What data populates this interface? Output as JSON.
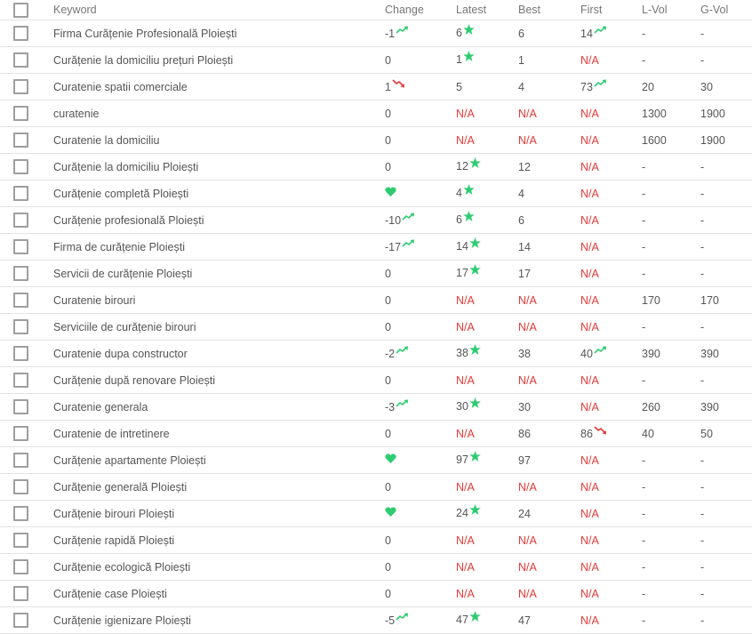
{
  "colors": {
    "green": "#2ecc71",
    "red": "#e53935",
    "text": "#555555",
    "header": "#777777",
    "border": "#e3e3e3"
  },
  "header": {
    "keyword": "Keyword",
    "change": "Change",
    "latest": "Latest",
    "best": "Best",
    "first": "First",
    "lvol": "L-Vol",
    "gvol": "G-Vol"
  },
  "rows": [
    {
      "keyword": "Firma Curățenie Profesională Ploiești",
      "change": "-1",
      "change_icon": "trend-up",
      "latest": "6",
      "latest_icon": "star",
      "best": "6",
      "first": "14",
      "first_icon": "trend-up",
      "lvol": "-",
      "gvol": "-"
    },
    {
      "keyword": "Curățenie la domiciliu prețuri Ploiești",
      "change": "0",
      "change_icon": "",
      "latest": "1",
      "latest_icon": "star",
      "best": "1",
      "first": "N/A",
      "first_icon": "",
      "lvol": "-",
      "gvol": "-"
    },
    {
      "keyword": "Curatenie spatii comerciale",
      "change": "1",
      "change_icon": "trend-down",
      "latest": "5",
      "latest_icon": "",
      "best": "4",
      "first": "73",
      "first_icon": "trend-up",
      "lvol": "20",
      "gvol": "30"
    },
    {
      "keyword": "curatenie",
      "change": "0",
      "change_icon": "",
      "latest": "N/A",
      "latest_icon": "",
      "best": "N/A",
      "first": "N/A",
      "first_icon": "",
      "lvol": "1300",
      "gvol": "1900"
    },
    {
      "keyword": "Curatenie la domiciliu",
      "change": "0",
      "change_icon": "",
      "latest": "N/A",
      "latest_icon": "",
      "best": "N/A",
      "first": "N/A",
      "first_icon": "",
      "lvol": "1600",
      "gvol": "1900"
    },
    {
      "keyword": "Curățenie la domiciliu Ploiești",
      "change": "0",
      "change_icon": "",
      "latest": "12",
      "latest_icon": "star",
      "best": "12",
      "first": "N/A",
      "first_icon": "",
      "lvol": "-",
      "gvol": "-"
    },
    {
      "keyword": "Curățenie completă Ploiești",
      "change": "",
      "change_icon": "heart",
      "latest": "4",
      "latest_icon": "star",
      "best": "4",
      "first": "N/A",
      "first_icon": "",
      "lvol": "-",
      "gvol": "-"
    },
    {
      "keyword": "Curățenie profesională Ploiești",
      "change": "-10",
      "change_icon": "trend-up",
      "latest": "6",
      "latest_icon": "star",
      "best": "6",
      "first": "N/A",
      "first_icon": "",
      "lvol": "-",
      "gvol": "-"
    },
    {
      "keyword": "Firma de curățenie Ploiești",
      "change": "-17",
      "change_icon": "trend-up",
      "latest": "14",
      "latest_icon": "star",
      "best": "14",
      "first": "N/A",
      "first_icon": "",
      "lvol": "-",
      "gvol": "-"
    },
    {
      "keyword": "Servicii de curățenie Ploiești",
      "change": "0",
      "change_icon": "",
      "latest": "17",
      "latest_icon": "star",
      "best": "17",
      "first": "N/A",
      "first_icon": "",
      "lvol": "-",
      "gvol": "-"
    },
    {
      "keyword": "Curatenie birouri",
      "change": "0",
      "change_icon": "",
      "latest": "N/A",
      "latest_icon": "",
      "best": "N/A",
      "first": "N/A",
      "first_icon": "",
      "lvol": "170",
      "gvol": "170"
    },
    {
      "keyword": "Serviciile de curățenie birouri",
      "change": "0",
      "change_icon": "",
      "latest": "N/A",
      "latest_icon": "",
      "best": "N/A",
      "first": "N/A",
      "first_icon": "",
      "lvol": "-",
      "gvol": "-"
    },
    {
      "keyword": "Curatenie dupa constructor",
      "change": "-2",
      "change_icon": "trend-up",
      "latest": "38",
      "latest_icon": "star",
      "best": "38",
      "first": "40",
      "first_icon": "trend-up",
      "lvol": "390",
      "gvol": "390"
    },
    {
      "keyword": "Curățenie după renovare Ploiești",
      "change": "0",
      "change_icon": "",
      "latest": "N/A",
      "latest_icon": "",
      "best": "N/A",
      "first": "N/A",
      "first_icon": "",
      "lvol": "-",
      "gvol": "-"
    },
    {
      "keyword": "Curatenie generala",
      "change": "-3",
      "change_icon": "trend-up",
      "latest": "30",
      "latest_icon": "star",
      "best": "30",
      "first": "N/A",
      "first_icon": "",
      "lvol": "260",
      "gvol": "390"
    },
    {
      "keyword": "Curatenie de intretinere",
      "change": "0",
      "change_icon": "",
      "latest": "N/A",
      "latest_icon": "",
      "best": "86",
      "first": "86",
      "first_icon": "trend-down",
      "lvol": "40",
      "gvol": "50"
    },
    {
      "keyword": "Curățenie apartamente Ploiești",
      "change": "",
      "change_icon": "heart",
      "latest": "97",
      "latest_icon": "star",
      "best": "97",
      "first": "N/A",
      "first_icon": "",
      "lvol": "-",
      "gvol": "-"
    },
    {
      "keyword": "Curățenie generală Ploiești",
      "change": "0",
      "change_icon": "",
      "latest": "N/A",
      "latest_icon": "",
      "best": "N/A",
      "first": "N/A",
      "first_icon": "",
      "lvol": "-",
      "gvol": "-"
    },
    {
      "keyword": "Curățenie birouri Ploiești",
      "change": "",
      "change_icon": "heart",
      "latest": "24",
      "latest_icon": "star",
      "best": "24",
      "first": "N/A",
      "first_icon": "",
      "lvol": "-",
      "gvol": "-"
    },
    {
      "keyword": "Curățenie rapidă Ploiești",
      "change": "0",
      "change_icon": "",
      "latest": "N/A",
      "latest_icon": "",
      "best": "N/A",
      "first": "N/A",
      "first_icon": "",
      "lvol": "-",
      "gvol": "-"
    },
    {
      "keyword": "Curățenie ecologică Ploiești",
      "change": "0",
      "change_icon": "",
      "latest": "N/A",
      "latest_icon": "",
      "best": "N/A",
      "first": "N/A",
      "first_icon": "",
      "lvol": "-",
      "gvol": "-"
    },
    {
      "keyword": "Curățenie case Ploiești",
      "change": "0",
      "change_icon": "",
      "latest": "N/A",
      "latest_icon": "",
      "best": "N/A",
      "first": "N/A",
      "first_icon": "",
      "lvol": "-",
      "gvol": "-"
    },
    {
      "keyword": "Curățenie igienizare Ploiești",
      "change": "-5",
      "change_icon": "trend-up",
      "latest": "47",
      "latest_icon": "star",
      "best": "47",
      "first": "N/A",
      "first_icon": "",
      "lvol": "-",
      "gvol": "-"
    }
  ]
}
